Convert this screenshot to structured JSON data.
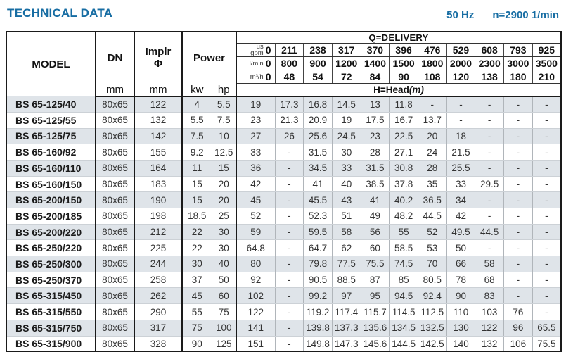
{
  "page": {
    "title": "TECHNICAL DATA",
    "frequency": "50 Hz",
    "speed": "n=2900 1/min"
  },
  "colors": {
    "accent_blue": "#176da3",
    "row_shade": "#dfe4e9"
  },
  "table": {
    "headers": {
      "model": "MODEL",
      "dn": "DN",
      "impeller_line1": "Implr",
      "impeller_line2": "Φ",
      "power": "Power",
      "unit_mm": "mm",
      "unit_kw": "kw",
      "unit_hp": "hp",
      "delivery_title": "Q=DELIVERY",
      "head_title": "H=Head",
      "head_unit": "(m)"
    },
    "flow_rows": [
      {
        "id": "us-gpm",
        "unit_lines": [
          "us",
          "gpm"
        ],
        "zero": "0",
        "values": [
          "211",
          "238",
          "317",
          "370",
          "396",
          "476",
          "529",
          "608",
          "793",
          "925"
        ]
      },
      {
        "id": "l-min",
        "unit_lines": [
          "l/min"
        ],
        "zero": "0",
        "values": [
          "800",
          "900",
          "1200",
          "1400",
          "1500",
          "1800",
          "2000",
          "2300",
          "3000",
          "3500"
        ]
      },
      {
        "id": "m3-h",
        "unit_lines": [
          "m³/h"
        ],
        "zero": "0",
        "values": [
          "48",
          "54",
          "72",
          "84",
          "90",
          "108",
          "120",
          "138",
          "180",
          "210"
        ]
      }
    ],
    "rows": [
      {
        "model": "BS 65-125/40",
        "dn": "80x65",
        "impeller": "122",
        "kw": "4",
        "hp": "5.5",
        "head": [
          "19",
          "17.3",
          "16.8",
          "14.5",
          "13",
          "11.8",
          "-",
          "-",
          "-",
          "-",
          "-"
        ]
      },
      {
        "model": "BS 65-125/55",
        "dn": "80x65",
        "impeller": "132",
        "kw": "5.5",
        "hp": "7.5",
        "head": [
          "23",
          "21.3",
          "20.9",
          "19",
          "17.5",
          "16.7",
          "13.7",
          "-",
          "-",
          "-",
          "-"
        ]
      },
      {
        "model": "BS 65-125/75",
        "dn": "80x65",
        "impeller": "142",
        "kw": "7.5",
        "hp": "10",
        "head": [
          "27",
          "26",
          "25.6",
          "24.5",
          "23",
          "22.5",
          "20",
          "18",
          "-",
          "-",
          "-"
        ]
      },
      {
        "model": "BS 65-160/92",
        "dn": "80x65",
        "impeller": "155",
        "kw": "9.2",
        "hp": "12.5",
        "head": [
          "33",
          "-",
          "31.5",
          "30",
          "28",
          "27.1",
          "24",
          "21.5",
          "-",
          "-",
          "-"
        ]
      },
      {
        "model": "BS 65-160/110",
        "dn": "80x65",
        "impeller": "164",
        "kw": "11",
        "hp": "15",
        "head": [
          "36",
          "-",
          "34.5",
          "33",
          "31.5",
          "30.8",
          "28",
          "25.5",
          "-",
          "-",
          "-"
        ]
      },
      {
        "model": "BS 65-160/150",
        "dn": "80x65",
        "impeller": "183",
        "kw": "15",
        "hp": "20",
        "head": [
          "42",
          "-",
          "41",
          "40",
          "38.5",
          "37.8",
          "35",
          "33",
          "29.5",
          "-",
          "-"
        ]
      },
      {
        "model": "BS 65-200/150",
        "dn": "80x65",
        "impeller": "190",
        "kw": "15",
        "hp": "20",
        "head": [
          "45",
          "-",
          "45.5",
          "43",
          "41",
          "40.2",
          "36.5",
          "34",
          "-",
          "-",
          "-"
        ]
      },
      {
        "model": "BS 65-200/185",
        "dn": "80x65",
        "impeller": "198",
        "kw": "18.5",
        "hp": "25",
        "head": [
          "52",
          "-",
          "52.3",
          "51",
          "49",
          "48.2",
          "44.5",
          "42",
          "-",
          "-",
          "-"
        ]
      },
      {
        "model": "BS 65-200/220",
        "dn": "80x65",
        "impeller": "212",
        "kw": "22",
        "hp": "30",
        "head": [
          "59",
          "-",
          "59.5",
          "58",
          "56",
          "55",
          "52",
          "49.5",
          "44.5",
          "-",
          "-"
        ]
      },
      {
        "model": "BS 65-250/220",
        "dn": "80x65",
        "impeller": "225",
        "kw": "22",
        "hp": "30",
        "head": [
          "64.8",
          "-",
          "64.7",
          "62",
          "60",
          "58.5",
          "53",
          "50",
          "-",
          "-",
          "-"
        ]
      },
      {
        "model": "BS 65-250/300",
        "dn": "80x65",
        "impeller": "244",
        "kw": "30",
        "hp": "40",
        "head": [
          "80",
          "-",
          "79.8",
          "77.5",
          "75.5",
          "74.5",
          "70",
          "66",
          "58",
          "-",
          "-"
        ]
      },
      {
        "model": "BS 65-250/370",
        "dn": "80x65",
        "impeller": "258",
        "kw": "37",
        "hp": "50",
        "head": [
          "92",
          "-",
          "90.5",
          "88.5",
          "87",
          "85",
          "80.5",
          "78",
          "68",
          "-",
          "-"
        ]
      },
      {
        "model": "BS 65-315/450",
        "dn": "80x65",
        "impeller": "262",
        "kw": "45",
        "hp": "60",
        "head": [
          "102",
          "-",
          "99.2",
          "97",
          "95",
          "94.5",
          "92.4",
          "90",
          "83",
          "-",
          "-"
        ]
      },
      {
        "model": "BS 65-315/550",
        "dn": "80x65",
        "impeller": "290",
        "kw": "55",
        "hp": "75",
        "head": [
          "122",
          "-",
          "119.2",
          "117.4",
          "115.7",
          "114.5",
          "112.5",
          "110",
          "103",
          "76",
          "-"
        ]
      },
      {
        "model": "BS 65-315/750",
        "dn": "80x65",
        "impeller": "317",
        "kw": "75",
        "hp": "100",
        "head": [
          "141",
          "-",
          "139.8",
          "137.3",
          "135.6",
          "134.5",
          "132.5",
          "130",
          "122",
          "96",
          "65.5"
        ]
      },
      {
        "model": "BS 65-315/900",
        "dn": "80x65",
        "impeller": "328",
        "kw": "90",
        "hp": "125",
        "head": [
          "151",
          "-",
          "149.8",
          "147.3",
          "145.6",
          "144.5",
          "142.5",
          "140",
          "132",
          "106",
          "75.5"
        ]
      }
    ]
  }
}
